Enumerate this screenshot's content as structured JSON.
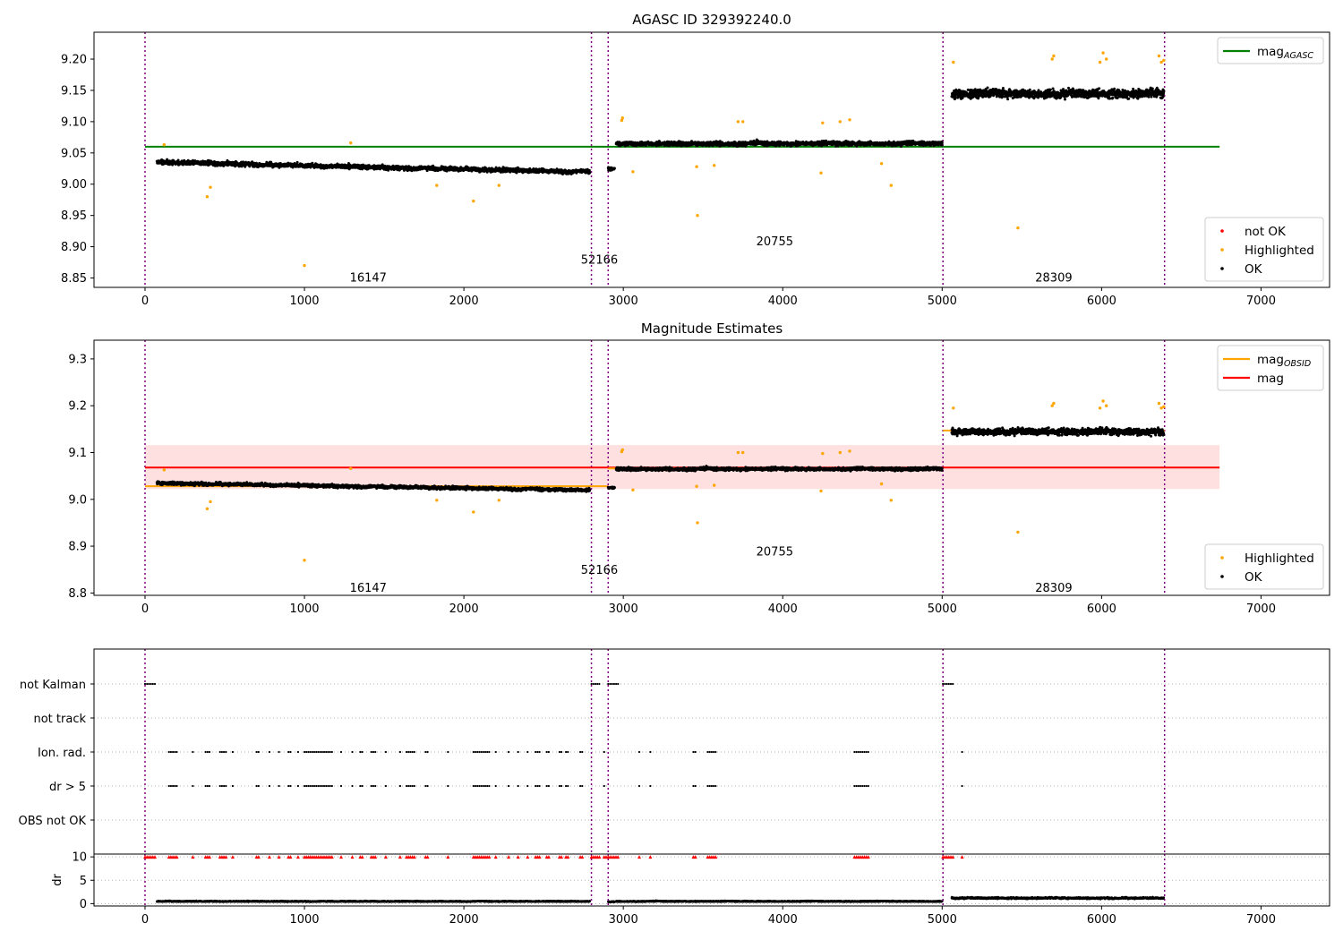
{
  "colors": {
    "ok": "#000000",
    "not_ok": "#ff0000",
    "highlighted": "#ffa500",
    "agasc_line": "#008000",
    "obsid_line": "#ffa500",
    "mag_line": "#ff0000",
    "band": "#ffcccc",
    "vline": "#800080"
  },
  "chart_data": [
    {
      "type": "scatter",
      "title": "AGASC ID 329392240.0",
      "xlabel": "",
      "ylabel": "",
      "xlim": [
        -320,
        7430
      ],
      "ylim": [
        8.835,
        9.243
      ],
      "xticks": [
        0,
        1000,
        2000,
        3000,
        4000,
        5000,
        6000,
        7000
      ],
      "yticks": [
        8.85,
        8.9,
        8.95,
        9.0,
        9.05,
        9.1,
        9.15,
        9.2
      ],
      "legend_top": {
        "placement": "top-right",
        "entries": [
          {
            "label": "mag",
            "sub": "AGASC",
            "kind": "line",
            "color": "#008000"
          }
        ]
      },
      "legend_bottom": {
        "placement": "bottom-right",
        "entries": [
          {
            "label": "not OK",
            "kind": "marker",
            "color": "#ff0000"
          },
          {
            "label": "Highlighted",
            "kind": "marker",
            "color": "#ffa500"
          },
          {
            "label": "OK",
            "kind": "marker",
            "color": "#000000"
          }
        ]
      },
      "obs_boundaries": [
        0,
        2800,
        2905,
        5005,
        6395
      ],
      "obsids": [
        {
          "label": "16147",
          "x": 1400,
          "y": 8.85
        },
        {
          "label": "52166",
          "x": 2850,
          "y": 8.879
        },
        {
          "label": "20755",
          "x": 3950,
          "y": 8.908
        },
        {
          "label": "28309",
          "x": 5700,
          "y": 8.85
        }
      ],
      "lines": [
        {
          "name": "mag_AGASC",
          "y": 9.06,
          "x": [
            0,
            6740
          ],
          "color": "#008000"
        }
      ],
      "series": [
        {
          "name": "OK",
          "segments": [
            {
              "x": [
                75,
                2790
              ],
              "base": [
                9.035,
                9.02
              ],
              "amp": 0.012
            },
            {
              "x": [
                2905,
                2945
              ],
              "base": [
                9.025,
                9.025
              ],
              "amp": 0.008
            },
            {
              "x": [
                2955,
                5000
              ],
              "base": [
                9.065,
                9.065
              ],
              "amp": 0.012
            },
            {
              "x": [
                5060,
                6390
              ],
              "base": [
                9.145,
                9.145
              ],
              "amp": 0.025
            }
          ]
        },
        {
          "name": "Highlighted",
          "points": [
            [
              120,
              9.063
            ],
            [
              390,
              8.98
            ],
            [
              410,
              8.995
            ],
            [
              1000,
              8.87
            ],
            [
              1290,
              9.066
            ],
            [
              1830,
              8.998
            ],
            [
              2060,
              8.973
            ],
            [
              2220,
              8.998
            ],
            [
              2990,
              9.102
            ],
            [
              2995,
              9.106
            ],
            [
              3060,
              9.02
            ],
            [
              3460,
              9.028
            ],
            [
              3465,
              8.95
            ],
            [
              3570,
              9.03
            ],
            [
              3720,
              9.1
            ],
            [
              3750,
              9.1
            ],
            [
              4240,
              9.018
            ],
            [
              4250,
              9.098
            ],
            [
              4360,
              9.1
            ],
            [
              4420,
              9.103
            ],
            [
              4620,
              9.033
            ],
            [
              4680,
              8.998
            ],
            [
              5070,
              9.195
            ],
            [
              5475,
              8.93
            ],
            [
              5690,
              9.2
            ],
            [
              5700,
              9.205
            ],
            [
              5990,
              9.195
            ],
            [
              6010,
              9.21
            ],
            [
              6030,
              9.2
            ],
            [
              6360,
              9.205
            ],
            [
              6375,
              9.195
            ],
            [
              6390,
              9.198
            ]
          ]
        }
      ]
    },
    {
      "type": "scatter",
      "title": "Magnitude Estimates",
      "xlabel": "",
      "ylabel": "",
      "xlim": [
        -320,
        7430
      ],
      "ylim": [
        8.795,
        9.34
      ],
      "xticks": [
        0,
        1000,
        2000,
        3000,
        4000,
        5000,
        6000,
        7000
      ],
      "yticks": [
        8.8,
        8.9,
        9.0,
        9.1,
        9.2,
        9.3
      ],
      "legend_top": {
        "placement": "top-right",
        "entries": [
          {
            "label": "mag",
            "sub": "OBSID",
            "kind": "line",
            "color": "#ffa500"
          },
          {
            "label": "mag",
            "sub": "",
            "kind": "line",
            "color": "#ff0000"
          }
        ]
      },
      "legend_bottom": {
        "placement": "bottom-right",
        "entries": [
          {
            "label": "Highlighted",
            "kind": "marker",
            "color": "#ffa500"
          },
          {
            "label": "OK",
            "kind": "marker",
            "color": "#000000"
          }
        ]
      },
      "obs_boundaries": [
        0,
        2800,
        2905,
        5005,
        6395
      ],
      "obsids": [
        {
          "label": "16147",
          "x": 1400,
          "y": 8.81
        },
        {
          "label": "52166",
          "x": 2850,
          "y": 8.849
        },
        {
          "label": "20755",
          "x": 3950,
          "y": 8.888
        },
        {
          "label": "28309",
          "x": 5700,
          "y": 8.81
        }
      ],
      "band": {
        "y": [
          9.022,
          9.116
        ],
        "x": [
          0,
          6740
        ]
      },
      "lines": [
        {
          "name": "mag",
          "y": 9.068,
          "x": [
            0,
            6740
          ],
          "color": "#ff0000"
        },
        {
          "name": "mag_OBSID",
          "y": 9.028,
          "x": [
            0,
            2905
          ],
          "color": "#ffa500"
        },
        {
          "name": "mag_OBSID",
          "y": 9.066,
          "x": [
            2905,
            5005
          ],
          "color": "#ffa500"
        },
        {
          "name": "mag_OBSID",
          "y": 9.147,
          "x": [
            5005,
            6395
          ],
          "color": "#ffa500"
        }
      ],
      "series": [
        {
          "name": "OK",
          "segments": [
            {
              "x": [
                75,
                2790
              ],
              "base": [
                9.035,
                9.02
              ],
              "amp": 0.012
            },
            {
              "x": [
                2905,
                2945
              ],
              "base": [
                9.025,
                9.025
              ],
              "amp": 0.008
            },
            {
              "x": [
                2955,
                5000
              ],
              "base": [
                9.065,
                9.065
              ],
              "amp": 0.012
            },
            {
              "x": [
                5060,
                6390
              ],
              "base": [
                9.145,
                9.145
              ],
              "amp": 0.025
            }
          ]
        },
        {
          "name": "Highlighted",
          "points": [
            [
              120,
              9.063
            ],
            [
              390,
              8.98
            ],
            [
              410,
              8.995
            ],
            [
              1000,
              8.87
            ],
            [
              1290,
              9.066
            ],
            [
              1830,
              8.998
            ],
            [
              2060,
              8.973
            ],
            [
              2220,
              8.998
            ],
            [
              2990,
              9.102
            ],
            [
              2995,
              9.106
            ],
            [
              3060,
              9.02
            ],
            [
              3460,
              9.028
            ],
            [
              3465,
              8.95
            ],
            [
              3570,
              9.03
            ],
            [
              3720,
              9.1
            ],
            [
              3750,
              9.1
            ],
            [
              4240,
              9.018
            ],
            [
              4250,
              9.098
            ],
            [
              4360,
              9.1
            ],
            [
              4420,
              9.103
            ],
            [
              4620,
              9.033
            ],
            [
              4680,
              8.998
            ],
            [
              5070,
              9.195
            ],
            [
              5475,
              8.93
            ],
            [
              5690,
              9.2
            ],
            [
              5700,
              9.205
            ],
            [
              5990,
              9.195
            ],
            [
              6010,
              9.21
            ],
            [
              6030,
              9.2
            ],
            [
              6360,
              9.205
            ],
            [
              6375,
              9.195
            ],
            [
              6390,
              9.198
            ]
          ]
        }
      ]
    },
    {
      "type": "scatter",
      "title": "",
      "xlabel": "",
      "ylabel": "",
      "xlim": [
        -320,
        7430
      ],
      "categories": [
        "not Kalman",
        "not track",
        "Ion. rad.",
        "dr > 5",
        "OBS not OK"
      ],
      "obs_boundaries": [
        0,
        2800,
        2905,
        5005,
        6395
      ],
      "flags": {
        "not Kalman": [
          [
            0,
            70
          ],
          [
            2800,
            2860
          ],
          [
            2905,
            2975
          ],
          [
            5005,
            5070
          ]
        ],
        "not track": [],
        "Ion. rad.": [
          [
            150,
            210
          ],
          [
            300,
            300
          ],
          [
            380,
            410
          ],
          [
            470,
            510
          ],
          [
            550,
            550
          ],
          [
            700,
            720
          ],
          [
            780,
            790
          ],
          [
            840,
            850
          ],
          [
            900,
            920
          ],
          [
            960,
            960
          ],
          [
            1000,
            1180
          ],
          [
            1230,
            1240
          ],
          [
            1300,
            1310
          ],
          [
            1350,
            1370
          ],
          [
            1420,
            1450
          ],
          [
            1510,
            1520
          ],
          [
            1600,
            1610
          ],
          [
            1640,
            1700
          ],
          [
            1760,
            1780
          ],
          [
            1900,
            1900
          ],
          [
            2060,
            2160
          ],
          [
            2200,
            2210
          ],
          [
            2280,
            2290
          ],
          [
            2340,
            2350
          ],
          [
            2400,
            2410
          ],
          [
            2450,
            2480
          ],
          [
            2520,
            2540
          ],
          [
            2600,
            2620
          ],
          [
            2640,
            2660
          ],
          [
            2730,
            2750
          ],
          [
            2880,
            2890
          ],
          [
            3100,
            3100
          ],
          [
            3170,
            3170
          ],
          [
            3440,
            3460
          ],
          [
            3530,
            3590
          ],
          [
            4450,
            4540
          ],
          [
            5125,
            5125
          ]
        ],
        "dr > 5": [
          [
            150,
            210
          ],
          [
            300,
            300
          ],
          [
            380,
            410
          ],
          [
            470,
            510
          ],
          [
            550,
            550
          ],
          [
            700,
            720
          ],
          [
            780,
            790
          ],
          [
            840,
            850
          ],
          [
            900,
            920
          ],
          [
            960,
            960
          ],
          [
            1000,
            1180
          ],
          [
            1230,
            1240
          ],
          [
            1300,
            1310
          ],
          [
            1350,
            1370
          ],
          [
            1420,
            1450
          ],
          [
            1510,
            1520
          ],
          [
            1600,
            1610
          ],
          [
            1640,
            1700
          ],
          [
            1760,
            1780
          ],
          [
            1900,
            1900
          ],
          [
            2060,
            2160
          ],
          [
            2200,
            2210
          ],
          [
            2280,
            2290
          ],
          [
            2340,
            2350
          ],
          [
            2400,
            2410
          ],
          [
            2450,
            2480
          ],
          [
            2520,
            2540
          ],
          [
            2600,
            2620
          ],
          [
            2640,
            2660
          ],
          [
            2730,
            2750
          ],
          [
            2880,
            2890
          ],
          [
            3100,
            3100
          ],
          [
            3170,
            3170
          ],
          [
            3440,
            3460
          ],
          [
            3530,
            3590
          ],
          [
            4450,
            4540
          ],
          [
            5125,
            5125
          ]
        ],
        "OBS not OK": []
      }
    },
    {
      "type": "scatter",
      "title": "",
      "xlabel": "",
      "ylabel": "dr",
      "xlim": [
        -320,
        7430
      ],
      "ylim": [
        -0.5,
        10.6
      ],
      "xticks": [
        0,
        1000,
        2000,
        3000,
        4000,
        5000,
        6000,
        7000
      ],
      "yticks": [
        0,
        5,
        10
      ],
      "obs_boundaries": [
        0,
        2800,
        2905,
        5005,
        6395
      ],
      "clipped_at": 10,
      "clipped_segments": [
        [
          0,
          70
        ],
        [
          150,
          210
        ],
        [
          300,
          300
        ],
        [
          380,
          410
        ],
        [
          470,
          510
        ],
        [
          550,
          550
        ],
        [
          700,
          720
        ],
        [
          780,
          790
        ],
        [
          840,
          850
        ],
        [
          900,
          920
        ],
        [
          960,
          960
        ],
        [
          1000,
          1180
        ],
        [
          1230,
          1240
        ],
        [
          1300,
          1310
        ],
        [
          1350,
          1370
        ],
        [
          1420,
          1450
        ],
        [
          1510,
          1520
        ],
        [
          1600,
          1610
        ],
        [
          1640,
          1700
        ],
        [
          1760,
          1780
        ],
        [
          1900,
          1900
        ],
        [
          2060,
          2160
        ],
        [
          2200,
          2210
        ],
        [
          2280,
          2290
        ],
        [
          2340,
          2350
        ],
        [
          2400,
          2410
        ],
        [
          2450,
          2480
        ],
        [
          2520,
          2540
        ],
        [
          2600,
          2620
        ],
        [
          2640,
          2660
        ],
        [
          2730,
          2750
        ],
        [
          2800,
          2860
        ],
        [
          2880,
          2975
        ],
        [
          3100,
          3100
        ],
        [
          3170,
          3170
        ],
        [
          3440,
          3460
        ],
        [
          3530,
          3590
        ],
        [
          4450,
          4540
        ],
        [
          5005,
          5070
        ],
        [
          5125,
          5125
        ]
      ],
      "series": [
        {
          "name": "dr",
          "segments": [
            {
              "x": [
                75,
                2790
              ],
              "base": [
                0.5,
                0.5
              ],
              "amp": 0.35
            },
            {
              "x": [
                2905,
                2945
              ],
              "base": [
                0.4,
                0.4
              ],
              "amp": 0.3
            },
            {
              "x": [
                2955,
                5000
              ],
              "base": [
                0.5,
                0.5
              ],
              "amp": 0.35
            },
            {
              "x": [
                5060,
                6390
              ],
              "base": [
                1.2,
                1.2
              ],
              "amp": 0.6
            }
          ]
        }
      ]
    }
  ]
}
